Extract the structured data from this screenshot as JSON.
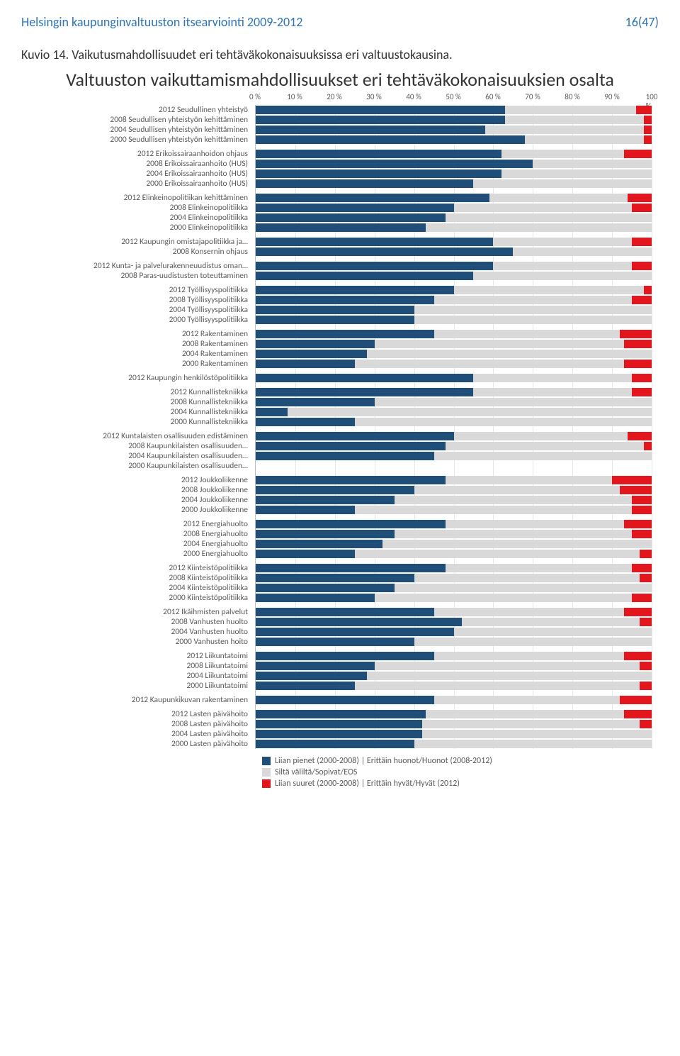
{
  "header": {
    "title": "Helsingin kaupunginvaltuuston itsearviointi 2009-2012",
    "page": "16(47)"
  },
  "caption": "Kuvio 14. Vaikutusmahdollisuudet eri tehtäväkokonaisuuksissa eri valtuustokausina.",
  "chart": {
    "title": "Valtuuston vaikuttamismahdollisuukset eri tehtäväkokonaisuuksien osalta",
    "type": "stacked-horizontal-bar",
    "background_color": "#ffffff",
    "grid_color": "#e6e6e6",
    "label_fontsize": 11.5,
    "title_fontsize": 26,
    "colors": {
      "low": "#1f4e79",
      "mid": "#d9d9d9",
      "high": "#e3161e"
    },
    "xaxis": {
      "min": 0,
      "max": 100,
      "ticks": [
        0,
        10,
        20,
        30,
        40,
        50,
        60,
        70,
        80,
        90,
        100
      ],
      "ticklabels": [
        "0 %",
        "10 %",
        "20 %",
        "30 %",
        "40 %",
        "50 %",
        "60 %",
        "70 %",
        "80 %",
        "90 %",
        "100 %"
      ],
      "tick_fontsize": 11
    },
    "legend": {
      "items": [
        {
          "key": "low",
          "label": "Liian pienet (2000-2008) | Erittäin huonot/Huonot (2008-2012)"
        },
        {
          "key": "mid",
          "label": "Siltä väliltä/Sopivat/EOS"
        },
        {
          "key": "high",
          "label": "Liian suuret (2000-2008) | Erittäin hyvät/Hyvät (2012)"
        }
      ]
    },
    "groups": [
      {
        "rows": [
          {
            "label": "2012 Seudullinen yhteistyö",
            "low": 63,
            "mid": 33,
            "high": 4
          },
          {
            "label": "2008 Seudullisen yhteistyön kehittäminen",
            "low": 63,
            "mid": 35,
            "high": 2
          },
          {
            "label": "2004 Seudullisen yhteistyön kehittäminen",
            "low": 58,
            "mid": 40,
            "high": 2
          },
          {
            "label": "2000 Seudullisen yhteistyön kehittäminen",
            "low": 68,
            "mid": 30,
            "high": 2
          }
        ]
      },
      {
        "rows": [
          {
            "label": "2012 Erikoissairaanhoidon ohjaus",
            "low": 62,
            "mid": 31,
            "high": 7
          },
          {
            "label": "2008 Erikoissairaanhoito (HUS)",
            "low": 70,
            "mid": 30,
            "high": 0
          },
          {
            "label": "2004 Erikoissairaanhoito (HUS)",
            "low": 62,
            "mid": 38,
            "high": 0
          },
          {
            "label": "2000 Erikoissairaanhoito (HUS)",
            "low": 55,
            "mid": 45,
            "high": 0
          }
        ]
      },
      {
        "rows": [
          {
            "label": "2012 Elinkeinopolitiikan kehittäminen",
            "low": 59,
            "mid": 35,
            "high": 6
          },
          {
            "label": "2008 Elinkeinopolitiikka",
            "low": 50,
            "mid": 45,
            "high": 5
          },
          {
            "label": "2004 Elinkeinopolitiikka",
            "low": 48,
            "mid": 52,
            "high": 0
          },
          {
            "label": "2000 Elinkeinopolitiikka",
            "low": 43,
            "mid": 57,
            "high": 0
          }
        ]
      },
      {
        "rows": [
          {
            "label": "2012 Kaupungin omistajapolitiikka ja…",
            "low": 60,
            "mid": 35,
            "high": 5
          },
          {
            "label": "2008 Konsernin ohjaus",
            "low": 65,
            "mid": 35,
            "high": 0
          }
        ]
      },
      {
        "rows": [
          {
            "label": "2012 Kunta- ja palvelurakenneuudistus oman…",
            "low": 60,
            "mid": 35,
            "high": 5
          },
          {
            "label": "2008 Paras-uudistusten toteuttaminen",
            "low": 55,
            "mid": 45,
            "high": 0
          }
        ]
      },
      {
        "rows": [
          {
            "label": "2012 Työllisyyspolitiikka",
            "low": 50,
            "mid": 48,
            "high": 2
          },
          {
            "label": "2008 Työllisyyspolitiikka",
            "low": 45,
            "mid": 50,
            "high": 5
          },
          {
            "label": "2004 Työllisyyspolitiikka",
            "low": 40,
            "mid": 60,
            "high": 0
          },
          {
            "label": "2000 Työllisyyspolitiikka",
            "low": 40,
            "mid": 60,
            "high": 0
          }
        ]
      },
      {
        "rows": [
          {
            "label": "2012 Rakentaminen",
            "low": 45,
            "mid": 47,
            "high": 8
          },
          {
            "label": "2008 Rakentaminen",
            "low": 30,
            "mid": 63,
            "high": 7
          },
          {
            "label": "2004 Rakentaminen",
            "low": 28,
            "mid": 72,
            "high": 0
          },
          {
            "label": "2000 Rakentaminen",
            "low": 25,
            "mid": 68,
            "high": 7
          }
        ]
      },
      {
        "rows": [
          {
            "label": "2012 Kaupungin henkilöstöpolitiikka",
            "low": 55,
            "mid": 40,
            "high": 5
          }
        ]
      },
      {
        "rows": [
          {
            "label": "2012 Kunnallistekniikka",
            "low": 55,
            "mid": 40,
            "high": 5
          },
          {
            "label": "2008 Kunnallistekniikka",
            "low": 30,
            "mid": 70,
            "high": 0
          },
          {
            "label": "2004 Kunnallistekniikka",
            "low": 8,
            "mid": 92,
            "high": 0
          },
          {
            "label": "2000 Kunnallistekniikka",
            "low": 25,
            "mid": 75,
            "high": 0
          }
        ]
      },
      {
        "rows": [
          {
            "label": "2012 Kuntalaisten osallisuuden edistäminen",
            "low": 50,
            "mid": 44,
            "high": 6
          },
          {
            "label": "2008 Kaupunkilaisten osallisuuden…",
            "low": 48,
            "mid": 50,
            "high": 2
          },
          {
            "label": "2004 Kaupunkilaisten osallisuuden…",
            "low": 45,
            "mid": 55,
            "high": 0
          },
          {
            "label": "2000 Kaupunkilaisten osallisuuden…",
            "low": 0,
            "mid": 0,
            "high": 0
          }
        ]
      },
      {
        "rows": [
          {
            "label": "2012 Joukkoliikenne",
            "low": 48,
            "mid": 42,
            "high": 10
          },
          {
            "label": "2008 Joukkoliikenne",
            "low": 40,
            "mid": 52,
            "high": 8
          },
          {
            "label": "2004 Joukkoliikenne",
            "low": 35,
            "mid": 60,
            "high": 5
          },
          {
            "label": "2000 Joukkoliikenne",
            "low": 25,
            "mid": 70,
            "high": 5
          }
        ]
      },
      {
        "rows": [
          {
            "label": "2012 Energiahuolto",
            "low": 48,
            "mid": 45,
            "high": 7
          },
          {
            "label": "2008 Energiahuolto",
            "low": 35,
            "mid": 60,
            "high": 5
          },
          {
            "label": "2004 Energiahuolto",
            "low": 32,
            "mid": 68,
            "high": 0
          },
          {
            "label": "2000 Energiahuolto",
            "low": 25,
            "mid": 72,
            "high": 3
          }
        ]
      },
      {
        "rows": [
          {
            "label": "2012 Kiinteistöpolitiikka",
            "low": 48,
            "mid": 47,
            "high": 5
          },
          {
            "label": "2008 Kiinteistöpolitiikka",
            "low": 40,
            "mid": 57,
            "high": 3
          },
          {
            "label": "2004 Kiinteistöpolitiikka",
            "low": 35,
            "mid": 65,
            "high": 0
          },
          {
            "label": "2000 Kiinteistöpolitiikka",
            "low": 30,
            "mid": 65,
            "high": 5
          }
        ]
      },
      {
        "rows": [
          {
            "label": "2012 Ikäihmisten palvelut",
            "low": 45,
            "mid": 48,
            "high": 7
          },
          {
            "label": "2008 Vanhusten huolto",
            "low": 52,
            "mid": 45,
            "high": 3
          },
          {
            "label": "2004 Vanhusten huolto",
            "low": 50,
            "mid": 50,
            "high": 0
          },
          {
            "label": "2000 Vanhusten hoito",
            "low": 40,
            "mid": 60,
            "high": 0
          }
        ]
      },
      {
        "rows": [
          {
            "label": "2012 Liikuntatoimi",
            "low": 45,
            "mid": 48,
            "high": 7
          },
          {
            "label": "2008 Liikuntatoimi",
            "low": 30,
            "mid": 67,
            "high": 3
          },
          {
            "label": "2004 Liikuntatoimi",
            "low": 28,
            "mid": 72,
            "high": 0
          },
          {
            "label": "2000 Liikuntatoimi",
            "low": 25,
            "mid": 72,
            "high": 3
          }
        ]
      },
      {
        "rows": [
          {
            "label": "2012 Kaupunkikuvan rakentaminen",
            "low": 45,
            "mid": 47,
            "high": 8
          }
        ]
      },
      {
        "rows": [
          {
            "label": "2012 Lasten päivähoito",
            "low": 43,
            "mid": 50,
            "high": 7
          },
          {
            "label": "2008 Lasten päivähoito",
            "low": 42,
            "mid": 55,
            "high": 3
          },
          {
            "label": "2004 Lasten päivähoito",
            "low": 42,
            "mid": 58,
            "high": 0
          },
          {
            "label": "2000 Lasten päivähoito",
            "low": 40,
            "mid": 60,
            "high": 0
          }
        ]
      }
    ]
  }
}
